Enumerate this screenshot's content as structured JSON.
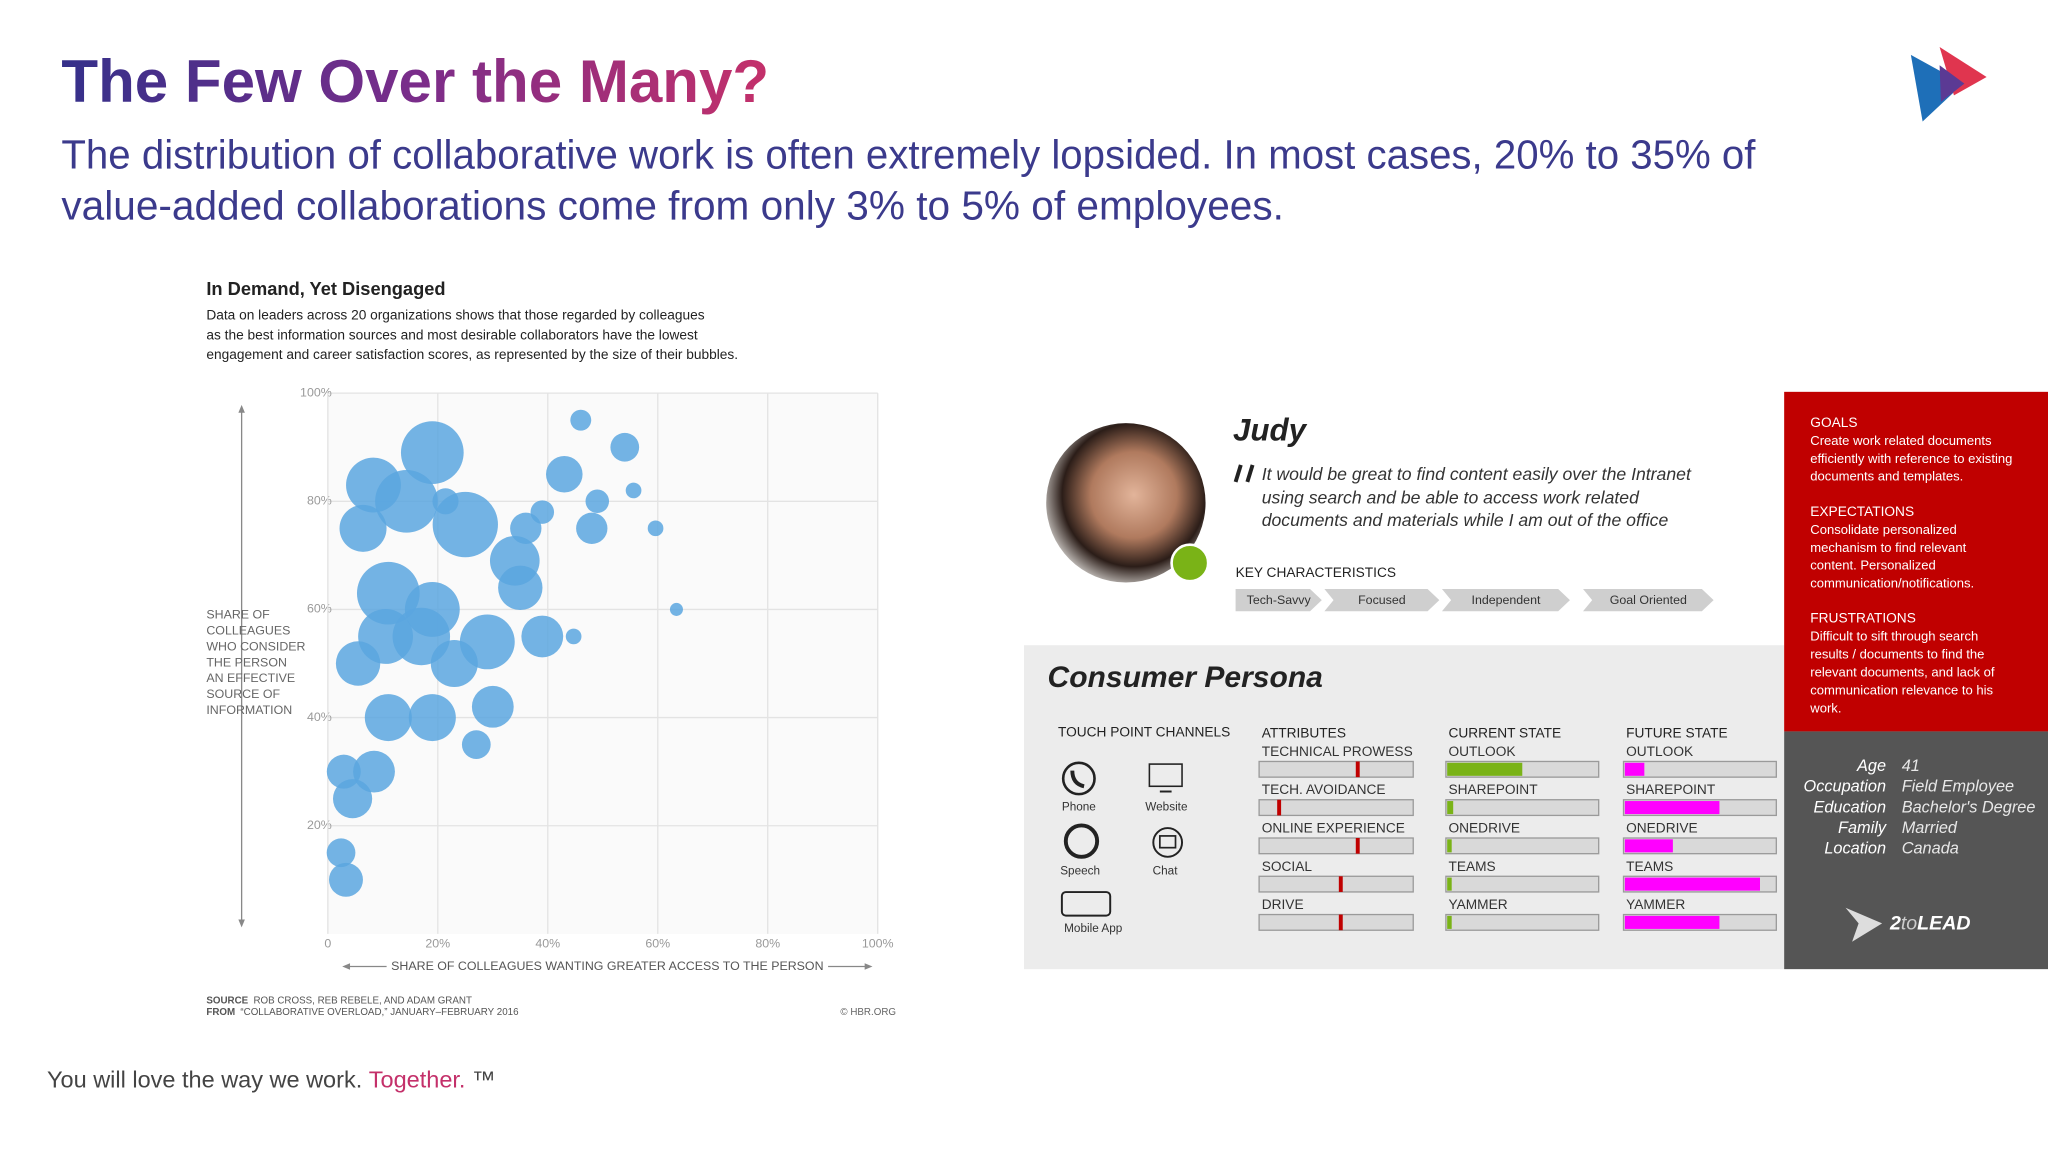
{
  "header": {
    "title": "The Few Over the Many?",
    "subtitle": [
      "The distribution of collaborative work is often extremely lopsided. In most cases, 20% to 35% of",
      "value-added collaborations come from only 3% to 5% of employees."
    ]
  },
  "chart_data": {
    "type": "bubble",
    "title": "In Demand, Yet Disengaged",
    "subtitle": [
      "Data on leaders across 20 organizations shows that those regarded by colleagues",
      "as the best information sources and most desirable collaborators have the lowest",
      "engagement and career satisfaction scores, as represented by the size of their bubbles."
    ],
    "y_label": [
      "SHARE OF",
      "COLLEAGUES",
      "WHO CONSIDER",
      "THE PERSON",
      "AN EFFECTIVE",
      "SOURCE OF",
      "INFORMATION"
    ],
    "x_label": "SHARE OF COLLEAGUES WANTING GREATER ACCESS TO THE PERSON",
    "xlim": [
      0,
      100
    ],
    "ylim": [
      0,
      100
    ],
    "xticks": [
      0,
      {
        "value": 20,
        "label": "20%"
      },
      {
        "value": 40,
        "label": "40%"
      },
      {
        "value": 60,
        "label": "60%"
      },
      {
        "value": 80,
        "label": "80%"
      },
      {
        "value": 100,
        "label": "100%"
      }
    ],
    "yticks": [
      {
        "value": 20,
        "label": "20%"
      },
      {
        "value": 40,
        "label": "40%"
      },
      {
        "value": 60,
        "label": "60%"
      },
      {
        "value": 80,
        "label": "80%"
      },
      {
        "value": 100,
        "label": "100%"
      }
    ],
    "grid": true,
    "series": [
      {
        "color": "#5ba6df",
        "x": [
          19,
          8.3,
          14.3,
          21.4,
          25,
          6.4,
          11,
          19,
          10.5,
          17,
          29,
          23,
          5.5,
          11,
          19,
          30,
          27,
          34,
          35,
          36,
          39,
          43,
          46,
          49,
          48,
          54,
          55.6,
          59.6,
          63.4,
          39,
          44.7,
          2.9,
          8.4,
          4.5,
          2.4,
          3.3
        ],
        "values": [
          89,
          83,
          80,
          80,
          75.7,
          75,
          63,
          60,
          55,
          55,
          54,
          50,
          50,
          40,
          40,
          42,
          35,
          69,
          64,
          75,
          78,
          85,
          95,
          80,
          75,
          90,
          82,
          75,
          60,
          55,
          55,
          30,
          30,
          25,
          15,
          10
        ],
        "sizes": [
          24,
          21,
          24,
          10,
          25,
          18,
          24,
          21,
          21,
          22,
          21,
          18,
          17,
          18,
          18,
          16,
          11,
          19,
          17,
          12,
          9,
          14,
          8,
          9,
          12,
          11,
          6,
          6,
          5,
          16,
          6,
          13,
          16,
          15,
          11,
          13
        ]
      }
    ],
    "source": {
      "label": "SOURCE",
      "text": "ROB CROSS, REB REBELE, AND ADAM GRANT"
    },
    "from": {
      "label": "FROM",
      "text": "“COLLABORATIVE OVERLOAD,” JANUARY–FEBRUARY 2016"
    },
    "credit": "© HBR.ORG"
  },
  "persona": {
    "name": "Judy",
    "quote": [
      "It would be great to find content easily over the Intranet",
      "using search and be able to access work related",
      "documents and materials while I am out of the office"
    ],
    "key_characteristics": {
      "heading": "KEY CHARACTERISTICS",
      "items": [
        "Tech-Savvy",
        "Focused",
        "Independent",
        "Goal Oriented"
      ]
    },
    "heading": "Consumer Persona",
    "channels": {
      "heading": "TOUCH POINT CHANNELS",
      "items": [
        "Phone",
        "Website",
        "Speech",
        "Chat",
        "Mobile App"
      ]
    },
    "attributes": {
      "heading": "ATTRIBUTES",
      "items": [
        {
          "label": "TECHNICAL PROWESS",
          "value": 64
        },
        {
          "label": "TECH. AVOIDANCE",
          "value": 13
        },
        {
          "label": "ONLINE EXPERIENCE",
          "value": 64
        },
        {
          "label": "SOCIAL",
          "value": 53
        },
        {
          "label": "DRIVE",
          "value": 53
        }
      ]
    },
    "current_state": {
      "heading": "CURRENT STATE",
      "items": [
        {
          "label": "OUTLOOK",
          "value": 50
        },
        {
          "label": "SHAREPOINT",
          "value": 4
        },
        {
          "label": "ONEDRIVE",
          "value": 3
        },
        {
          "label": "TEAMS",
          "value": 3
        },
        {
          "label": "YAMMER",
          "value": 3
        }
      ]
    },
    "future_state": {
      "heading": "FUTURE STATE",
      "items": [
        {
          "label": "OUTLOOK",
          "value": 13
        },
        {
          "label": "SHAREPOINT",
          "value": 63
        },
        {
          "label": "ONEDRIVE",
          "value": 32
        },
        {
          "label": "TEAMS",
          "value": 90
        },
        {
          "label": "YAMMER",
          "value": 63
        }
      ]
    },
    "goals": {
      "heading": "GOALS",
      "lines": [
        "Create work related documents",
        "efficiently with reference to existing",
        "documents and templates."
      ]
    },
    "expectations": {
      "heading": "EXPECTATIONS",
      "lines": [
        "Consolidate personalized",
        "mechanism to find relevant",
        "content. Personalized",
        "communication/notifications."
      ]
    },
    "frustrations": {
      "heading": "FRUSTRATIONS",
      "lines": [
        "Difficult to sift through search",
        "results / documents to find the",
        "relevant documents, and lack of",
        "communication relevance to his",
        "work."
      ]
    },
    "profile": [
      {
        "label": "Age",
        "value": "41"
      },
      {
        "label": "Occupation",
        "value": "Field Employee"
      },
      {
        "label": "Education",
        "value": "Bachelor's Degree"
      },
      {
        "label": "Family",
        "value": "Married"
      },
      {
        "label": "Location",
        "value": "Canada"
      }
    ],
    "brand": {
      "number": "2",
      "to": "to",
      "name": "LEAD"
    }
  },
  "footer": {
    "text": "You will love the way we work.",
    "highlight": "Together.",
    "mark": "™"
  }
}
